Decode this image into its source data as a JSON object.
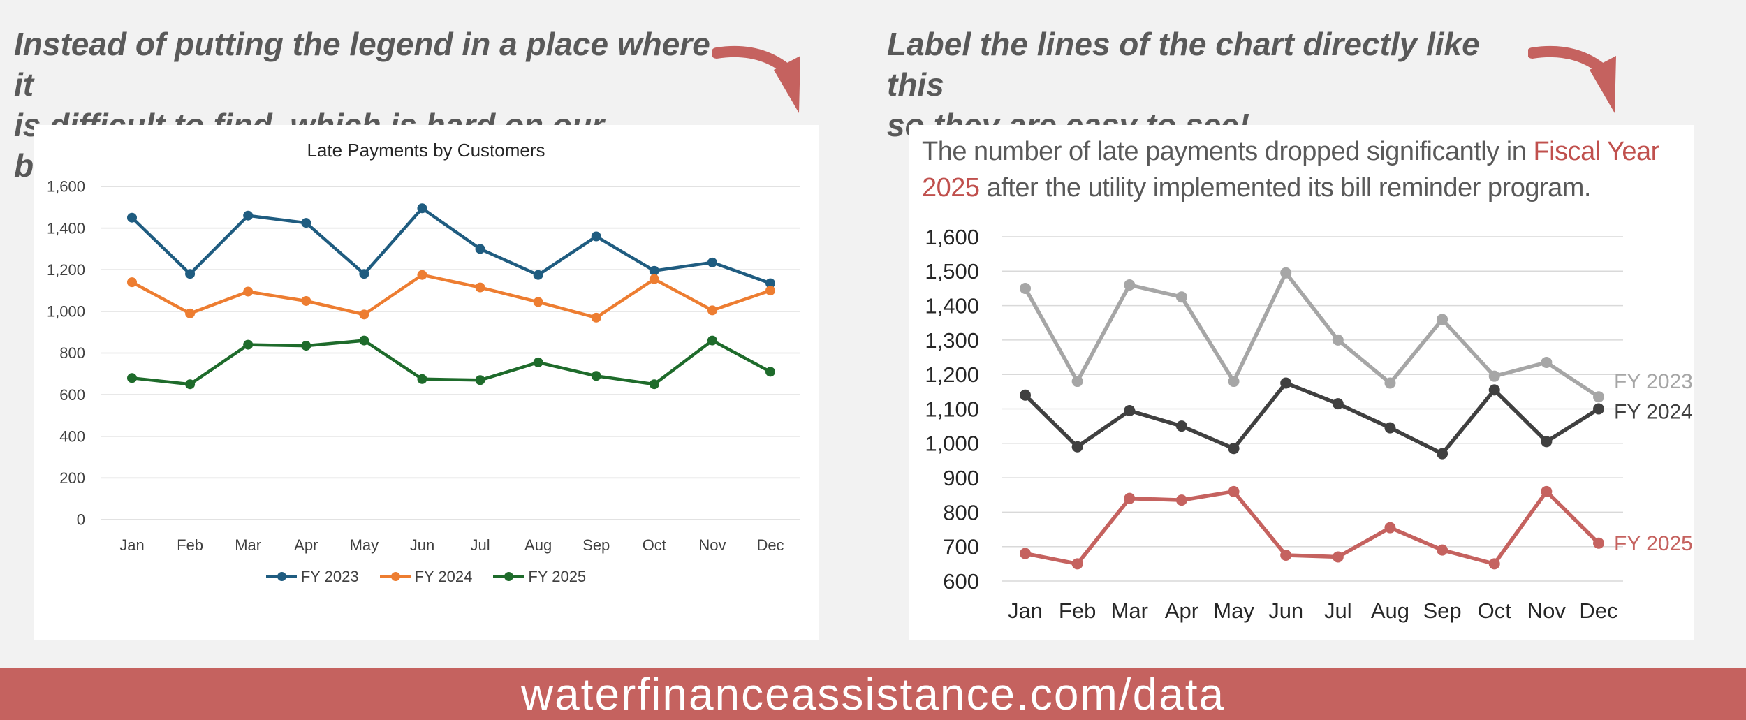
{
  "captions": {
    "left": "Instead of putting the legend in a place  where it\nis difficult to find, which is hard on our brains...",
    "right": "Label the lines of the chart directly like this\nso they are easy to see!"
  },
  "right_title": {
    "part1": "The number of late payments dropped significantly in ",
    "highlight": "Fiscal Year 2025",
    "part2": " after the utility implemented its bill reminder program."
  },
  "footer": {
    "text": "waterfinanceassistance.com/data"
  },
  "colors": {
    "fy2023_left": "#1f5c80",
    "fy2024_left": "#ed7d31",
    "fy2025_left": "#1e6b2b",
    "fy2023_right": "#a6a6a6",
    "fy2024_right": "#404040",
    "fy2025_right": "#c5625f",
    "footer": "#c5625f",
    "arrow": "#c5625f"
  },
  "chart_data": [
    {
      "type": "line",
      "title": "Late Payments by Customers",
      "categories": [
        "Jan",
        "Feb",
        "Mar",
        "Apr",
        "May",
        "Jun",
        "Jul",
        "Aug",
        "Sep",
        "Oct",
        "Nov",
        "Dec"
      ],
      "series": [
        {
          "name": "FY 2023",
          "values": [
            1450,
            1180,
            1460,
            1425,
            1180,
            1495,
            1300,
            1175,
            1360,
            1195,
            1235,
            1135
          ]
        },
        {
          "name": "FY 2024",
          "values": [
            1140,
            990,
            1095,
            1050,
            985,
            1175,
            1115,
            1045,
            970,
            1155,
            1005,
            1100
          ]
        },
        {
          "name": "FY 2025",
          "values": [
            680,
            650,
            840,
            835,
            860,
            675,
            670,
            755,
            690,
            650,
            860,
            710
          ]
        }
      ],
      "ylim": [
        0,
        1600
      ],
      "yticks": [
        0,
        200,
        400,
        600,
        800,
        1000,
        1200,
        1400,
        1600
      ],
      "ytick_labels": [
        "0",
        "200",
        "400",
        "600",
        "800",
        "1,000",
        "1,200",
        "1,400",
        "1,600"
      ],
      "grid": true,
      "legend": "bottom"
    },
    {
      "type": "line",
      "title": "",
      "categories": [
        "Jan",
        "Feb",
        "Mar",
        "Apr",
        "May",
        "Jun",
        "Jul",
        "Aug",
        "Sep",
        "Oct",
        "Nov",
        "Dec"
      ],
      "series": [
        {
          "name": "FY 2023",
          "values": [
            1450,
            1180,
            1460,
            1425,
            1180,
            1495,
            1300,
            1175,
            1360,
            1195,
            1235,
            1135
          ]
        },
        {
          "name": "FY 2024",
          "values": [
            1140,
            990,
            1095,
            1050,
            985,
            1175,
            1115,
            1045,
            970,
            1155,
            1005,
            1100
          ]
        },
        {
          "name": "FY 2025",
          "values": [
            680,
            650,
            840,
            835,
            860,
            675,
            670,
            755,
            690,
            650,
            860,
            710
          ]
        }
      ],
      "ylim": [
        600,
        1600
      ],
      "yticks": [
        600,
        700,
        800,
        900,
        1000,
        1100,
        1200,
        1300,
        1400,
        1500,
        1600
      ],
      "ytick_labels": [
        "600",
        "700",
        "800",
        "900",
        "1,000",
        "1,100",
        "1,200",
        "1,300",
        "1,400",
        "1,500",
        "1,600"
      ],
      "grid": true,
      "legend": "direct labels at line ends"
    }
  ]
}
